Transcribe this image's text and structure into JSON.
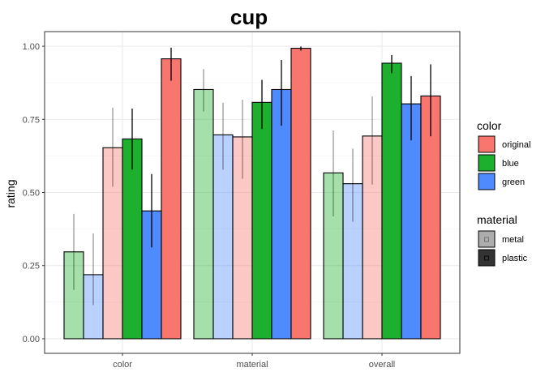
{
  "chart_data": {
    "type": "bar",
    "title": "cup",
    "xlabel": "",
    "ylabel": "rating",
    "ylim": [
      0,
      1
    ],
    "yticks": [
      "0.00",
      "0.25",
      "0.50",
      "0.75",
      "1.00"
    ],
    "categories": [
      "color",
      "material",
      "overall"
    ],
    "grid": true,
    "legend_placement": "right",
    "color_legend": {
      "title": "color",
      "entries": [
        {
          "label": "original",
          "color": "#F8766D"
        },
        {
          "label": "blue",
          "color": "#1DB02E"
        },
        {
          "label": "green",
          "color": "#4F8BFF"
        }
      ]
    },
    "material_legend": {
      "title": "material",
      "entries": [
        {
          "label": "metal",
          "alpha": 0.4
        },
        {
          "label": "plastic",
          "alpha": 1.0
        }
      ]
    },
    "series": [
      {
        "color": "#1DB02E",
        "material": "metal",
        "alpha": 0.4,
        "values": [
          0.297,
          0.852,
          0.567
        ],
        "lower": [
          0.167,
          0.777,
          0.418
        ],
        "upper": [
          0.427,
          0.922,
          0.712
        ]
      },
      {
        "color": "#4F8BFF",
        "material": "metal",
        "alpha": 0.4,
        "values": [
          0.219,
          0.697,
          0.53
        ],
        "lower": [
          0.115,
          0.578,
          0.4
        ],
        "upper": [
          0.36,
          0.807,
          0.65
        ]
      },
      {
        "color": "#F8766D",
        "material": "metal",
        "alpha": 0.4,
        "values": [
          0.653,
          0.69,
          0.693
        ],
        "lower": [
          0.52,
          0.547,
          0.527
        ],
        "upper": [
          0.79,
          0.817,
          0.828
        ]
      },
      {
        "color": "#1DB02E",
        "material": "plastic",
        "alpha": 1.0,
        "values": [
          0.683,
          0.808,
          0.942
        ],
        "lower": [
          0.578,
          0.717,
          0.908
        ],
        "upper": [
          0.787,
          0.885,
          0.97
        ]
      },
      {
        "color": "#4F8BFF",
        "material": "plastic",
        "alpha": 1.0,
        "values": [
          0.437,
          0.852,
          0.803
        ],
        "lower": [
          0.312,
          0.728,
          0.678
        ],
        "upper": [
          0.563,
          0.953,
          0.898
        ]
      },
      {
        "color": "#F8766D",
        "material": "plastic",
        "alpha": 1.0,
        "values": [
          0.957,
          0.993,
          0.83
        ],
        "lower": [
          0.882,
          0.985,
          0.692
        ],
        "upper": [
          0.995,
          0.999,
          0.938
        ]
      }
    ]
  }
}
